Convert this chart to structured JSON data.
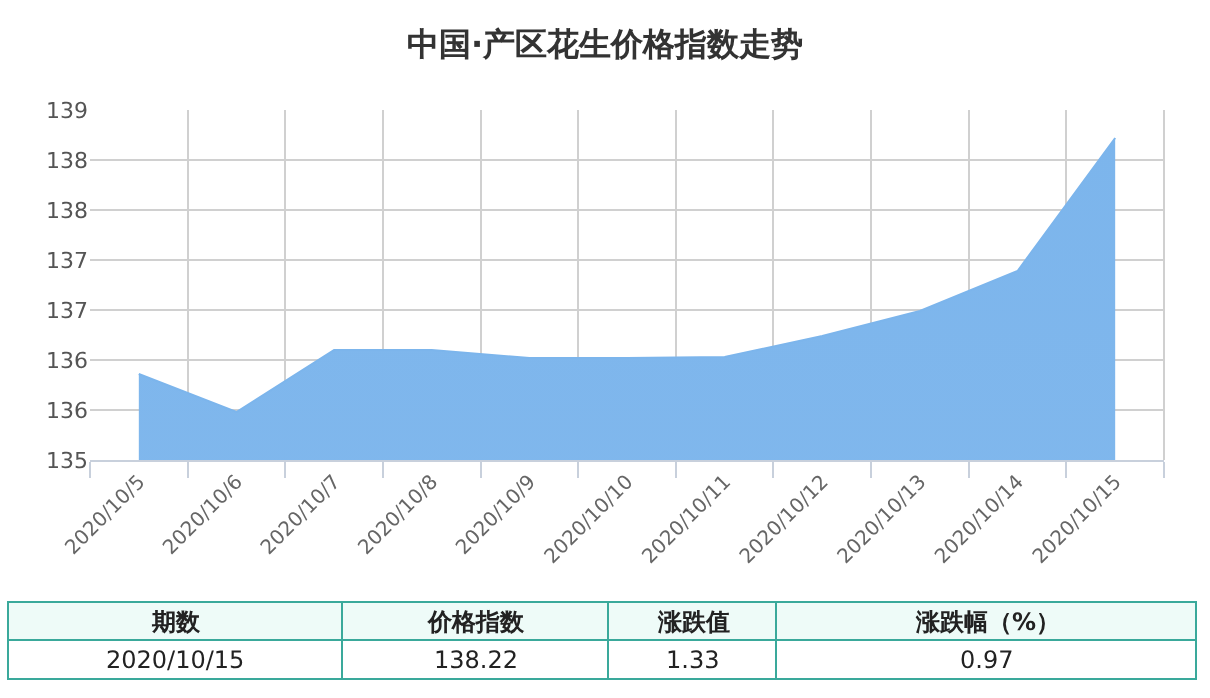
{
  "chart_data": {
    "type": "area",
    "title": "中国·产区花生价格指数走势",
    "categories": [
      "2020/10/5",
      "2020/10/6",
      "2020/10/7",
      "2020/10/8",
      "2020/10/9",
      "2020/10/10",
      "2020/10/11",
      "2020/10/12",
      "2020/10/13",
      "2020/10/14",
      "2020/10/15"
    ],
    "series": [
      {
        "color": "#7cb5ec",
        "values": [
          135.86,
          135.48,
          136.1,
          136.1,
          136.02,
          136.02,
          136.03,
          136.24,
          136.49,
          136.89,
          138.22
        ]
      }
    ],
    "ylim": [
      135,
      138.5
    ],
    "yticks": [
      135,
      {
        "value": 135.5,
        "label": "136"
      },
      136,
      {
        "value": 136.5,
        "label": "137"
      },
      137,
      {
        "value": 137.5,
        "label": "138"
      },
      138,
      {
        "value": 138.5,
        "label": "139"
      }
    ],
    "grid": true,
    "legend": false,
    "marker": "none",
    "annotations": [
      "期数",
      "价格指数",
      "涨跌值",
      "涨跌幅（%）",
      "2020/10/15",
      "138.22",
      "1.33",
      "0.97"
    ]
  }
}
